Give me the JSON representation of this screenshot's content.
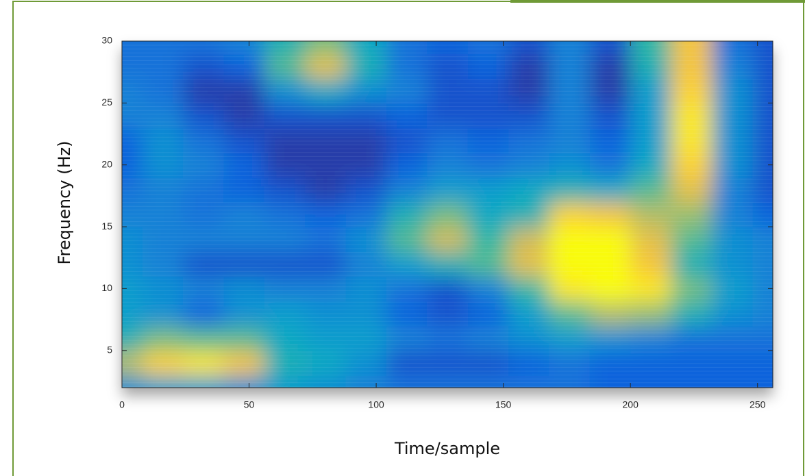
{
  "chart_data": {
    "type": "contour",
    "x_label": "Time/sample",
    "y_label": "Frequency (Hz)",
    "x": [
      0,
      16,
      32,
      48,
      64,
      80,
      96,
      112,
      128,
      144,
      160,
      176,
      192,
      208,
      224,
      240,
      256
    ],
    "y": [
      2,
      4,
      6,
      8,
      10,
      12,
      14,
      16,
      18,
      20,
      22,
      24,
      26,
      28,
      30
    ],
    "z": [
      [
        30,
        35,
        35,
        30,
        35,
        30,
        25,
        20,
        20,
        20,
        20,
        20,
        15,
        15,
        15,
        15,
        15
      ],
      [
        70,
        90,
        95,
        85,
        45,
        40,
        30,
        10,
        10,
        10,
        15,
        20,
        15,
        15,
        15,
        15,
        15
      ],
      [
        45,
        60,
        55,
        55,
        40,
        35,
        35,
        25,
        20,
        25,
        30,
        35,
        30,
        25,
        20,
        20,
        20
      ],
      [
        35,
        30,
        15,
        30,
        35,
        30,
        30,
        15,
        10,
        15,
        35,
        55,
        70,
        65,
        45,
        30,
        25
      ],
      [
        35,
        30,
        25,
        30,
        25,
        25,
        30,
        20,
        10,
        25,
        50,
        95,
        100,
        95,
        60,
        35,
        25
      ],
      [
        30,
        25,
        10,
        10,
        10,
        10,
        25,
        35,
        45,
        55,
        80,
        100,
        100,
        85,
        45,
        30,
        25
      ],
      [
        30,
        25,
        25,
        25,
        25,
        20,
        30,
        55,
        75,
        50,
        75,
        100,
        100,
        80,
        55,
        30,
        25
      ],
      [
        25,
        25,
        20,
        25,
        20,
        15,
        20,
        45,
        60,
        40,
        45,
        90,
        85,
        70,
        65,
        25,
        15
      ],
      [
        20,
        25,
        20,
        15,
        10,
        5,
        10,
        25,
        35,
        35,
        40,
        45,
        40,
        55,
        80,
        25,
        10
      ],
      [
        15,
        30,
        25,
        15,
        5,
        5,
        5,
        15,
        25,
        20,
        25,
        30,
        20,
        40,
        90,
        30,
        10
      ],
      [
        15,
        30,
        20,
        10,
        5,
        5,
        5,
        10,
        20,
        15,
        20,
        25,
        15,
        35,
        95,
        30,
        10
      ],
      [
        25,
        25,
        10,
        5,
        10,
        10,
        10,
        15,
        10,
        10,
        10,
        25,
        10,
        35,
        95,
        30,
        10
      ],
      [
        25,
        20,
        5,
        5,
        30,
        40,
        30,
        25,
        10,
        10,
        5,
        25,
        5,
        35,
        90,
        30,
        10
      ],
      [
        20,
        20,
        10,
        15,
        55,
        80,
        45,
        20,
        10,
        15,
        5,
        25,
        5,
        45,
        85,
        25,
        10
      ],
      [
        20,
        20,
        20,
        25,
        45,
        60,
        40,
        20,
        15,
        20,
        10,
        25,
        10,
        50,
        85,
        20,
        10
      ]
    ],
    "zlim": [
      0,
      100
    ],
    "colormap": [
      "#352a87",
      "#0f5cdd",
      "#1481d6",
      "#06a4ca",
      "#2eb7a4",
      "#87bf77",
      "#d1bb59",
      "#fec832",
      "#f9fb0e"
    ],
    "xlim": [
      0,
      256
    ],
    "ylim": [
      2,
      30
    ],
    "xticks": [
      0,
      50,
      100,
      150,
      200,
      250
    ],
    "yticks": [
      5,
      10,
      15,
      20,
      25,
      30
    ]
  }
}
